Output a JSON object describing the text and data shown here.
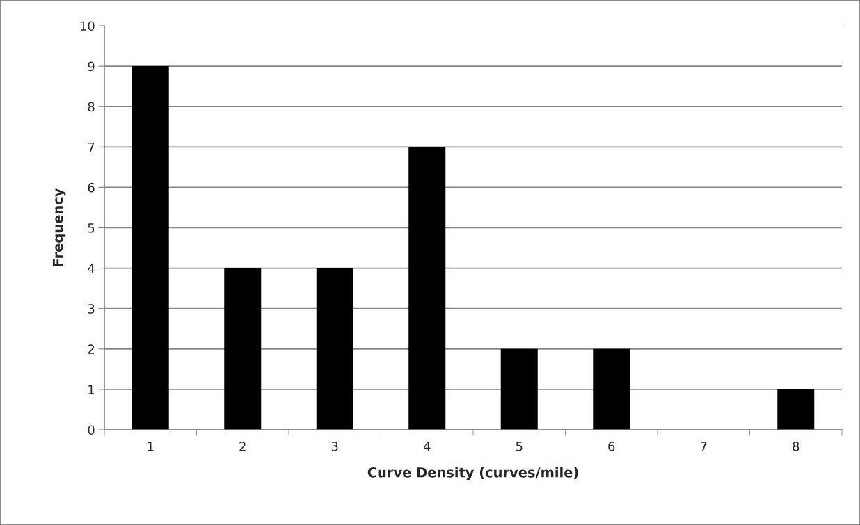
{
  "chart_data": {
    "type": "bar",
    "xlabel": "Curve Density (curves/mile)",
    "ylabel": "Frequency",
    "categories": [
      "1",
      "2",
      "3",
      "4",
      "5",
      "6",
      "7",
      "8"
    ],
    "values": [
      9,
      4,
      4,
      7,
      2,
      2,
      0,
      1
    ],
    "color": "#000000",
    "ylim": [
      0,
      10
    ],
    "yticks": [
      0,
      1,
      2,
      3,
      4,
      5,
      6,
      7,
      8,
      9,
      10
    ],
    "grid": "y"
  }
}
